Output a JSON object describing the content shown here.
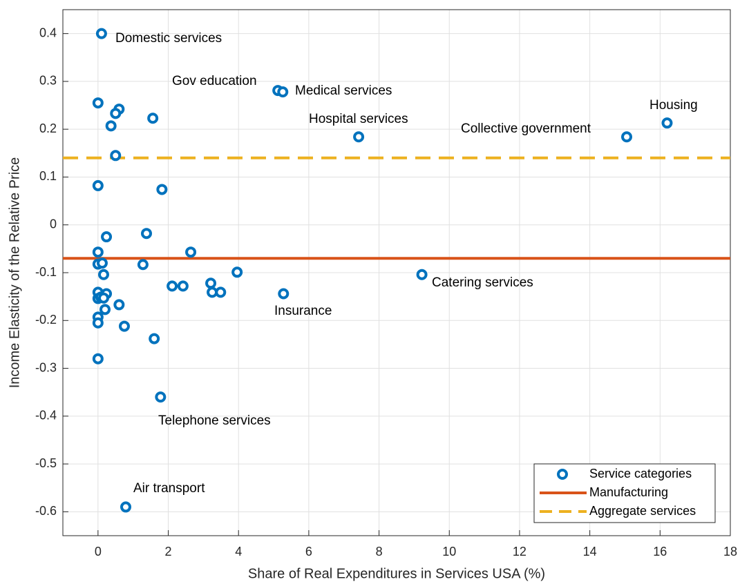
{
  "chart_data": {
    "type": "scatter",
    "xlabel": "Share of Real Expenditures in Services USA (%)",
    "ylabel": "Income Elasticity of the Relative Price",
    "xlim": [
      -1,
      18
    ],
    "xticks": [
      0,
      2,
      4,
      6,
      8,
      10,
      12,
      14,
      16,
      18
    ],
    "ylim": [
      -0.65,
      0.45
    ],
    "yticks": [
      -0.6,
      -0.5,
      -0.4,
      -0.3,
      -0.2,
      -0.1,
      0,
      0.1,
      0.2,
      0.3,
      0.4
    ],
    "grid": true,
    "legend": "southeast",
    "series": [
      {
        "name": "Service categories",
        "color": "#0072bd",
        "x": [
          0.1,
          0,
          0.6,
          0.5,
          0.37,
          1.56,
          0.5,
          0,
          1.82,
          0.24,
          1.38,
          0,
          2.64,
          0,
          0.12,
          1.28,
          0.16,
          3.96,
          9.22,
          2.11,
          2.42,
          3.21,
          3.25,
          3.49,
          5.28,
          0,
          0.24,
          0,
          0.08,
          0.16,
          0.6,
          0.2,
          0,
          0,
          0.75,
          1.6,
          0,
          1.78,
          0.79,
          5.12,
          5.26,
          7.42,
          15.05,
          16.2
        ],
        "y": [
          0.4,
          0.255,
          0.242,
          0.233,
          0.207,
          0.223,
          0.145,
          0.082,
          0.074,
          -0.025,
          -0.018,
          -0.057,
          -0.057,
          -0.082,
          -0.08,
          -0.083,
          -0.104,
          -0.099,
          -0.104,
          -0.128,
          -0.128,
          -0.122,
          -0.141,
          -0.141,
          -0.144,
          -0.141,
          -0.144,
          -0.154,
          -0.151,
          -0.153,
          -0.167,
          -0.177,
          -0.193,
          -0.205,
          -0.212,
          -0.238,
          -0.28,
          -0.36,
          -0.59,
          0.281,
          0.278,
          0.184,
          0.184,
          0.213
        ]
      }
    ],
    "reference_lines": [
      {
        "name": "Manufacturing",
        "color": "#d95319",
        "value": -0.07,
        "style": "solid"
      },
      {
        "name": "Aggregate services",
        "color": "#edb120",
        "value": 0.14,
        "style": "dashed"
      }
    ],
    "annotations": [
      "Domestic services",
      "Gov education",
      "Medical services",
      "Hospital services",
      "Housing",
      "Collective government",
      "Catering services",
      "Insurance",
      "Telephone services",
      "Air transport"
    ]
  }
}
